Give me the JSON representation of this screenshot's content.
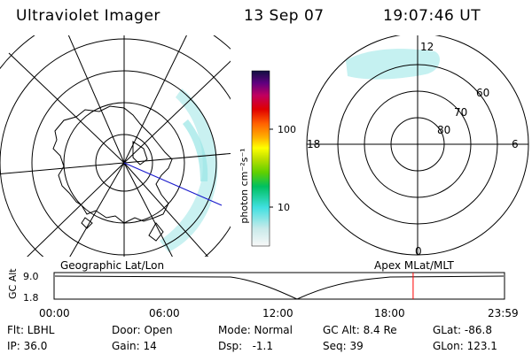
{
  "header": {
    "instrument": "Ultraviolet Imager",
    "date": "13 Sep 07",
    "time": "19:07:46 UT"
  },
  "colorbar": {
    "unit_label": "photon cm⁻²s⁻¹",
    "tick_100": "100",
    "tick_10": "10"
  },
  "polar_plot": {
    "lat_labels": [
      "80",
      "70",
      "60"
    ],
    "mlt_labels": {
      "top": "12",
      "left": "18",
      "right": "6",
      "bottom": "0"
    }
  },
  "timeline": {
    "left_label": "Geographic Lat/Lon",
    "right_label": "Apex MLat/MLT",
    "y_axis_title": "GC Alt",
    "y_max": "9.0",
    "y_min": "1.8",
    "time_ticks": [
      "00:00",
      "06:00",
      "12:00",
      "18:00",
      "23:59"
    ],
    "current_time_hours": 19.13,
    "colors": {
      "marker": "#ff0000"
    }
  },
  "info": {
    "filter": "Flt: LBHL",
    "ip": "IP: 36.0",
    "door": "Door: Open",
    "gain": "Gain: 14",
    "mode": "Mode: Normal",
    "dsp": "Dsp:   -1.1",
    "gc_alt": "GC Alt: 8.4 Re",
    "seq": "Seq: 39",
    "glat": "GLat: -86.8",
    "glon": "GLon: 123.1"
  }
}
